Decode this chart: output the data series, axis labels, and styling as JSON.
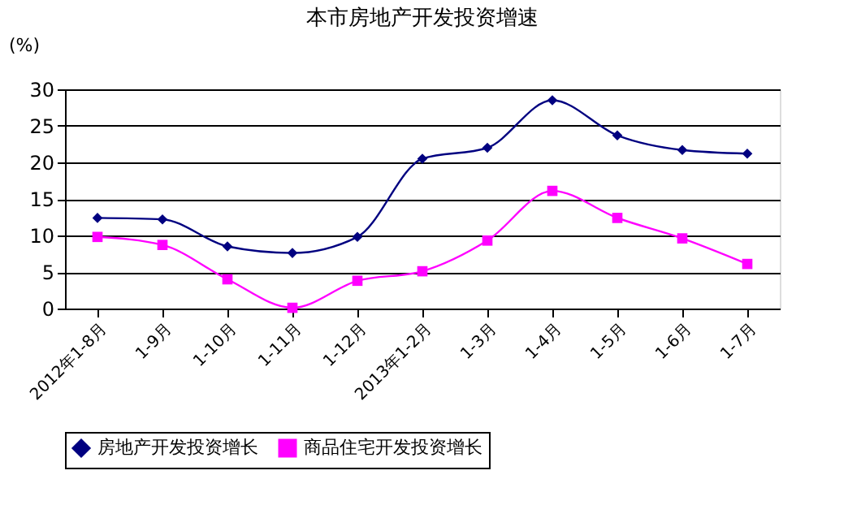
{
  "chart_data": {
    "type": "line",
    "title": "本市房地产开发投资增速",
    "ylabel": "(%)",
    "categories": [
      "2012年1-8月",
      "1-9月",
      "1-10月",
      "1-11月",
      "1-12月",
      "2013年1-2月",
      "1-3月",
      "1-4月",
      "1-5月",
      "1-6月",
      "1-7月"
    ],
    "series": [
      {
        "name": "房地产开发投资增长",
        "color": "#000080",
        "marker": "diamond",
        "values": [
          12.4,
          12.2,
          8.5,
          7.6,
          9.8,
          20.5,
          22.0,
          28.5,
          23.7,
          21.7,
          21.2
        ]
      },
      {
        "name": "商品住宅开发投资增长",
        "color": "#ff00ff",
        "marker": "square",
        "values": [
          9.8,
          8.7,
          4.0,
          0.1,
          3.8,
          5.1,
          9.3,
          16.1,
          12.4,
          9.6,
          6.1
        ]
      }
    ],
    "ylim": [
      0,
      30
    ],
    "yticks": [
      0,
      5,
      10,
      15,
      20,
      25,
      30
    ],
    "grid": "y",
    "legend": "bottom",
    "line_style": "solid"
  }
}
